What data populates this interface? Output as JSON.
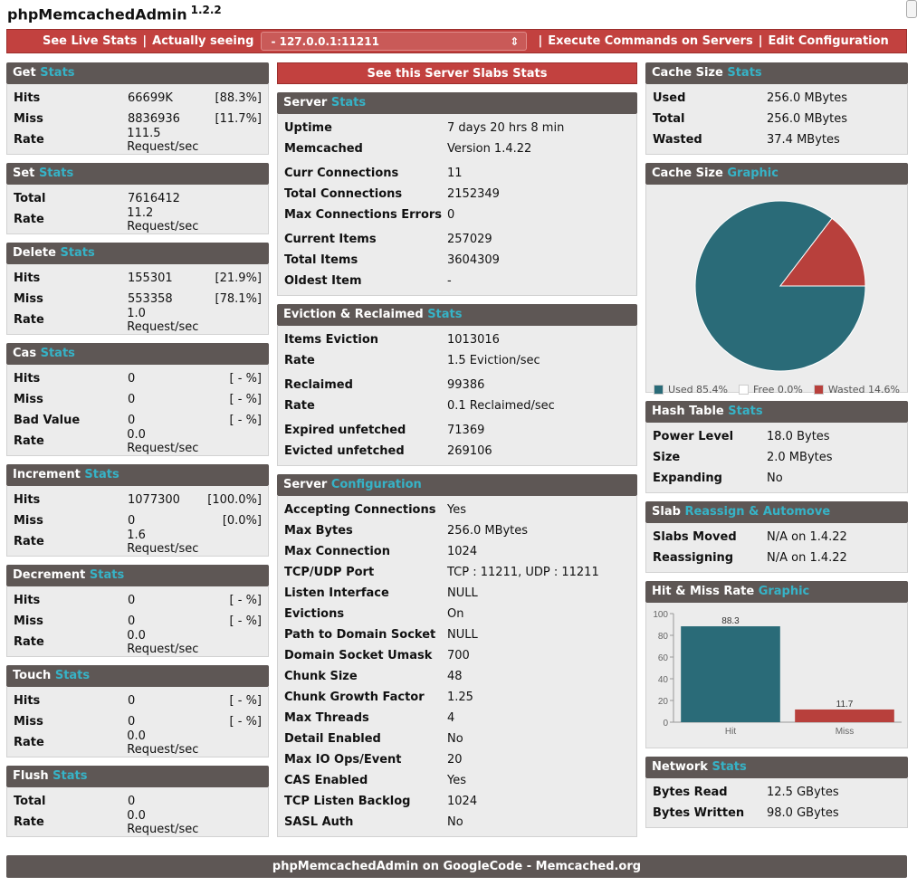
{
  "app": {
    "name": "phpMemcachedAdmin",
    "version": "1.2.2"
  },
  "topbar": {
    "live_stats": "See Live Stats",
    "actually_seeing": "Actually seeing",
    "server_selected": "- 127.0.0.1:11211",
    "execute": "Execute Commands on Servers",
    "edit_config": "Edit Configuration",
    "separator": "|"
  },
  "left": {
    "get": {
      "title": "Get",
      "accent": "Stats",
      "rows": [
        {
          "k": "Hits",
          "v": "66699K",
          "p": "[88.3%]"
        },
        {
          "k": "Miss",
          "v": "8836936",
          "p": "[11.7%]"
        },
        {
          "k": "Rate",
          "v": "111.5 Request/sec",
          "p": ""
        }
      ]
    },
    "set": {
      "title": "Set",
      "accent": "Stats",
      "rows": [
        {
          "k": "Total",
          "v": "7616412",
          "p": ""
        },
        {
          "k": "Rate",
          "v": "11.2 Request/sec",
          "p": ""
        }
      ]
    },
    "delete": {
      "title": "Delete",
      "accent": "Stats",
      "rows": [
        {
          "k": "Hits",
          "v": "155301",
          "p": "[21.9%]"
        },
        {
          "k": "Miss",
          "v": "553358",
          "p": "[78.1%]"
        },
        {
          "k": "Rate",
          "v": "1.0 Request/sec",
          "p": ""
        }
      ]
    },
    "cas": {
      "title": "Cas",
      "accent": "Stats",
      "rows": [
        {
          "k": "Hits",
          "v": "0",
          "p": "[ - %]"
        },
        {
          "k": "Miss",
          "v": "0",
          "p": "[ - %]"
        },
        {
          "k": "Bad Value",
          "v": "0",
          "p": "[ - %]"
        },
        {
          "k": "Rate",
          "v": "0.0 Request/sec",
          "p": ""
        }
      ]
    },
    "increment": {
      "title": "Increment",
      "accent": "Stats",
      "rows": [
        {
          "k": "Hits",
          "v": "1077300",
          "p": "[100.0%]"
        },
        {
          "k": "Miss",
          "v": "0",
          "p": "[0.0%]"
        },
        {
          "k": "Rate",
          "v": "1.6 Request/sec",
          "p": ""
        }
      ]
    },
    "decrement": {
      "title": "Decrement",
      "accent": "Stats",
      "rows": [
        {
          "k": "Hits",
          "v": "0",
          "p": "[ - %]"
        },
        {
          "k": "Miss",
          "v": "0",
          "p": "[ - %]"
        },
        {
          "k": "Rate",
          "v": "0.0 Request/sec",
          "p": ""
        }
      ]
    },
    "touch": {
      "title": "Touch",
      "accent": "Stats",
      "rows": [
        {
          "k": "Hits",
          "v": "0",
          "p": "[ - %]"
        },
        {
          "k": "Miss",
          "v": "0",
          "p": "[ - %]"
        },
        {
          "k": "Rate",
          "v": "0.0 Request/sec",
          "p": ""
        }
      ]
    },
    "flush": {
      "title": "Flush",
      "accent": "Stats",
      "rows": [
        {
          "k": "Total",
          "v": "0",
          "p": ""
        },
        {
          "k": "Rate",
          "v": "0.0 Request/sec",
          "p": ""
        }
      ]
    }
  },
  "mid": {
    "slabs_button": "See this Server Slabs Stats",
    "server": {
      "title": "Server",
      "accent": "Stats",
      "groups": [
        [
          {
            "k": "Uptime",
            "v": "7 days 20 hrs 8 min"
          },
          {
            "k": "Memcached",
            "v": "Version 1.4.22"
          }
        ],
        [
          {
            "k": "Curr Connections",
            "v": "11"
          },
          {
            "k": "Total Connections",
            "v": "2152349"
          },
          {
            "k": "Max Connections Errors",
            "v": "0"
          }
        ],
        [
          {
            "k": "Current Items",
            "v": "257029"
          },
          {
            "k": "Total Items",
            "v": "3604309"
          },
          {
            "k": "Oldest Item",
            "v": "-"
          }
        ]
      ]
    },
    "eviction": {
      "title": "Eviction & Reclaimed",
      "accent": "Stats",
      "groups": [
        [
          {
            "k": "Items Eviction",
            "v": "1013016"
          },
          {
            "k": "Rate",
            "v": "1.5 Eviction/sec"
          }
        ],
        [
          {
            "k": "Reclaimed",
            "v": "99386"
          },
          {
            "k": "Rate",
            "v": "0.1 Reclaimed/sec"
          }
        ],
        [
          {
            "k": "Expired unfetched",
            "v": "71369"
          },
          {
            "k": "Evicted unfetched",
            "v": "269106"
          }
        ]
      ]
    },
    "config": {
      "title": "Server",
      "accent": "Configuration",
      "groups": [
        [
          {
            "k": "Accepting Connections",
            "v": "Yes"
          },
          {
            "k": "Max Bytes",
            "v": "256.0 MBytes"
          },
          {
            "k": "Max Connection",
            "v": "1024"
          },
          {
            "k": "TCP/UDP Port",
            "v": "TCP : 11211, UDP : 11211"
          },
          {
            "k": "Listen Interface",
            "v": "NULL"
          },
          {
            "k": "Evictions",
            "v": "On"
          },
          {
            "k": "Path to Domain Socket",
            "v": "NULL"
          },
          {
            "k": "Domain Socket Umask",
            "v": "700"
          },
          {
            "k": "Chunk Size",
            "v": "48"
          },
          {
            "k": "Chunk Growth Factor",
            "v": "1.25"
          },
          {
            "k": "Max Threads",
            "v": "4"
          },
          {
            "k": "Detail Enabled",
            "v": "No"
          },
          {
            "k": "Max IO Ops/Event",
            "v": "20"
          },
          {
            "k": "CAS Enabled",
            "v": "Yes"
          },
          {
            "k": "TCP Listen Backlog",
            "v": "1024"
          },
          {
            "k": "SASL Auth",
            "v": "No"
          }
        ]
      ]
    }
  },
  "right": {
    "cache_size": {
      "title": "Cache Size",
      "accent": "Stats",
      "rows": [
        {
          "k": "Used",
          "v": "256.0 MBytes"
        },
        {
          "k": "Total",
          "v": "256.0 MBytes"
        },
        {
          "k": "Wasted",
          "v": "37.4 MBytes"
        }
      ]
    },
    "cache_graphic": {
      "title": "Cache Size",
      "accent": "Graphic"
    },
    "hash": {
      "title": "Hash Table",
      "accent": "Stats",
      "rows": [
        {
          "k": "Power Level",
          "v": "18.0 Bytes"
        },
        {
          "k": "Size",
          "v": "2.0 MBytes"
        },
        {
          "k": "Expanding",
          "v": "No"
        }
      ]
    },
    "slab": {
      "title": "Slab",
      "accent": "Reassign & Automove",
      "rows": [
        {
          "k": "Slabs Moved",
          "v": "N/A on 1.4.22"
        },
        {
          "k": "Reassigning",
          "v": "N/A on 1.4.22"
        }
      ]
    },
    "hitmiss": {
      "title": "Hit & Miss Rate",
      "accent": "Graphic"
    },
    "network": {
      "title": "Network",
      "accent": "Stats",
      "rows": [
        {
          "k": "Bytes Read",
          "v": "12.5 GBytes"
        },
        {
          "k": "Bytes Written",
          "v": "98.0 GBytes"
        }
      ]
    }
  },
  "chart_data": [
    {
      "type": "pie",
      "title": "Cache Size Graphic",
      "slices": [
        {
          "name": "Used 85.4%",
          "value": 85.4,
          "color": "#2a6b78"
        },
        {
          "name": "Free 0.0%",
          "value": 0.0,
          "color": "#ffffff"
        },
        {
          "name": "Wasted 14.6%",
          "value": 14.6,
          "color": "#b8403c"
        }
      ]
    },
    {
      "type": "bar",
      "title": "Hit & Miss Rate Graphic",
      "categories": [
        "Hit",
        "Miss"
      ],
      "values": [
        88.3,
        11.7
      ],
      "colors": [
        "#2a6b78",
        "#b8403c"
      ],
      "labels": [
        "88.3",
        "11.7"
      ],
      "ylim": [
        0,
        100
      ],
      "yticks": [
        "0",
        "20",
        "40",
        "60",
        "80",
        "100"
      ]
    }
  ],
  "footer": {
    "text": "phpMemcachedAdmin on GoogleCode - Memcached.org"
  }
}
